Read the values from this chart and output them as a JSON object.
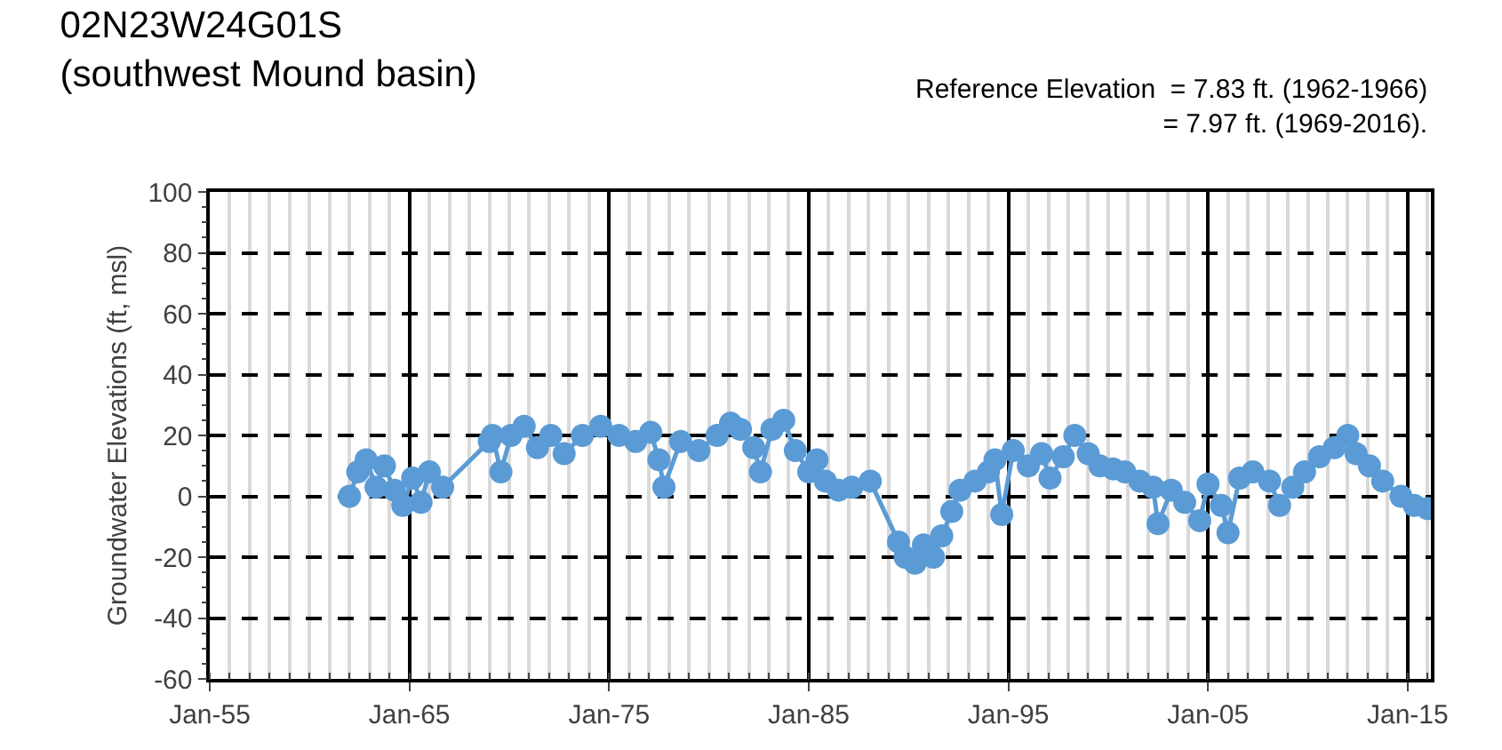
{
  "chart_data": {
    "type": "line",
    "title": "02N23W24G01S\n(southwest Mound basin)",
    "ylabel": "Groundwater Elevations (ft, msl)",
    "annotations": [
      "Reference Elevation  = 7.83 ft. (1962-1966)\n= 7.97 ft. (1969-2016)."
    ],
    "x": [
      "1962-01",
      "1962-06",
      "1962-11",
      "1963-05",
      "1963-10",
      "1964-04",
      "1964-09",
      "1965-03",
      "1965-08",
      "1966-01",
      "1966-09",
      "1969-01",
      "1969-03",
      "1969-08",
      "1970-02",
      "1970-10",
      "1971-06",
      "1972-02",
      "1972-10",
      "1973-09",
      "1974-08",
      "1975-07",
      "1976-05",
      "1977-02",
      "1977-07",
      "1977-10",
      "1978-08",
      "1979-07",
      "1980-06",
      "1981-02",
      "1981-08",
      "1982-04",
      "1982-08",
      "1983-03",
      "1983-10",
      "1984-05",
      "1985-01",
      "1985-06",
      "1985-11",
      "1986-07",
      "1987-03",
      "1988-02",
      "1989-07",
      "1989-11",
      "1990-05",
      "1990-10",
      "1991-04",
      "1991-09",
      "1992-03",
      "1992-08",
      "1993-05",
      "1994-01",
      "1994-05",
      "1994-09",
      "1995-04",
      "1996-01",
      "1996-09",
      "1997-02",
      "1997-10",
      "1998-05",
      "1999-01",
      "1999-08",
      "2000-04",
      "2000-11",
      "2001-08",
      "2002-04",
      "2002-07",
      "2003-03",
      "2003-11",
      "2004-08",
      "2005-01",
      "2005-09",
      "2006-01",
      "2006-08",
      "2007-04",
      "2008-02",
      "2008-08",
      "2009-04",
      "2009-11",
      "2010-08",
      "2011-05",
      "2012-01",
      "2012-06",
      "2013-02",
      "2013-10",
      "2014-09",
      "2015-05",
      "2016-01"
    ],
    "series": [
      {
        "color": "#5b9bd5",
        "values": [
          0,
          8,
          12,
          3,
          10,
          2,
          -3,
          6,
          -2,
          8,
          3,
          18,
          20,
          8,
          20,
          23,
          16,
          20,
          14,
          20,
          23,
          20,
          18,
          21,
          12,
          3,
          18,
          15,
          20,
          24,
          22,
          16,
          8,
          22,
          25,
          15,
          8,
          12,
          5,
          2,
          3,
          5,
          -15,
          -20,
          -22,
          -16,
          -20,
          -13,
          -5,
          2,
          5,
          8,
          12,
          -6,
          15,
          10,
          14,
          6,
          13,
          20,
          14,
          10,
          9,
          8,
          5,
          3,
          -9,
          2,
          -2,
          -8,
          4,
          -3,
          -12,
          6,
          8,
          5,
          -3,
          3,
          8,
          13,
          16,
          20,
          14,
          10,
          5,
          0,
          -3,
          -4
        ]
      }
    ],
    "ylim": [
      -60,
      100
    ],
    "yticks": [
      -60,
      -40,
      -20,
      0,
      20,
      40,
      60,
      80,
      100
    ],
    "xlim": [
      "1955-01",
      "2016-03"
    ],
    "xticks": [
      {
        "value": "1955-01",
        "label": "Jan-55"
      },
      {
        "value": "1965-01",
        "label": "Jan-65"
      },
      {
        "value": "1975-01",
        "label": "Jan-75"
      },
      {
        "value": "1985-01",
        "label": "Jan-85"
      },
      {
        "value": "1995-01",
        "label": "Jan-95"
      },
      {
        "value": "2005-01",
        "label": "Jan-05"
      },
      {
        "value": "2015-01",
        "label": "Jan-15"
      }
    ],
    "grid": true,
    "marker": "circle",
    "line_style": "solid"
  }
}
